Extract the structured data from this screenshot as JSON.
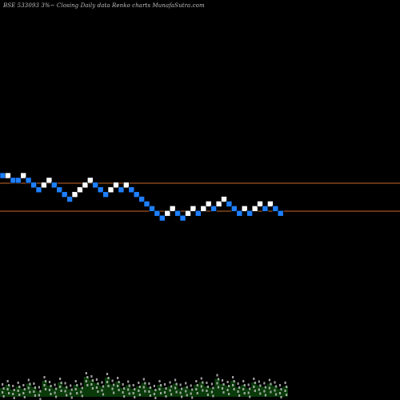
{
  "chart_data": {
    "type": "renko",
    "title": "BSE 533093 3%~   Closing Daily data  Renko  charts MunafaSutra.com",
    "colors": {
      "background": "#000000",
      "up_brick": "#ffffff",
      "down_brick": "#1e7fff",
      "level_line": "#c8682a",
      "volume_area": "#0a3a0a",
      "volume_label": "#d0d0d0"
    },
    "bricks": [
      {
        "dir": "down",
        "level": 10
      },
      {
        "dir": "up",
        "level": 10
      },
      {
        "dir": "down",
        "level": 9
      },
      {
        "dir": "down",
        "level": 9
      },
      {
        "dir": "up",
        "level": 10
      },
      {
        "dir": "down",
        "level": 9
      },
      {
        "dir": "down",
        "level": 8
      },
      {
        "dir": "down",
        "level": 7
      },
      {
        "dir": "up",
        "level": 8
      },
      {
        "dir": "up",
        "level": 9
      },
      {
        "dir": "down",
        "level": 8
      },
      {
        "dir": "down",
        "level": 7
      },
      {
        "dir": "down",
        "level": 6
      },
      {
        "dir": "down",
        "level": 5
      },
      {
        "dir": "up",
        "level": 6
      },
      {
        "dir": "up",
        "level": 7
      },
      {
        "dir": "up",
        "level": 8
      },
      {
        "dir": "up",
        "level": 9
      },
      {
        "dir": "down",
        "level": 8
      },
      {
        "dir": "down",
        "level": 7
      },
      {
        "dir": "down",
        "level": 6
      },
      {
        "dir": "up",
        "level": 7
      },
      {
        "dir": "up",
        "level": 8
      },
      {
        "dir": "down",
        "level": 7
      },
      {
        "dir": "up",
        "level": 8
      },
      {
        "dir": "down",
        "level": 7
      },
      {
        "dir": "down",
        "level": 6
      },
      {
        "dir": "down",
        "level": 5
      },
      {
        "dir": "down",
        "level": 4
      },
      {
        "dir": "down",
        "level": 3
      },
      {
        "dir": "down",
        "level": 2
      },
      {
        "dir": "down",
        "level": 1
      },
      {
        "dir": "up",
        "level": 2
      },
      {
        "dir": "up",
        "level": 3
      },
      {
        "dir": "down",
        "level": 2
      },
      {
        "dir": "down",
        "level": 1
      },
      {
        "dir": "up",
        "level": 2
      },
      {
        "dir": "up",
        "level": 3
      },
      {
        "dir": "down",
        "level": 2
      },
      {
        "dir": "up",
        "level": 3
      },
      {
        "dir": "up",
        "level": 4
      },
      {
        "dir": "down",
        "level": 3
      },
      {
        "dir": "up",
        "level": 4
      },
      {
        "dir": "up",
        "level": 5
      },
      {
        "dir": "down",
        "level": 4
      },
      {
        "dir": "down",
        "level": 3
      },
      {
        "dir": "down",
        "level": 2
      },
      {
        "dir": "up",
        "level": 3
      },
      {
        "dir": "down",
        "level": 2
      },
      {
        "dir": "up",
        "level": 3
      },
      {
        "dir": "up",
        "level": 4
      },
      {
        "dir": "down",
        "level": 3
      },
      {
        "dir": "up",
        "level": 4
      },
      {
        "dir": "down",
        "level": 3
      },
      {
        "dir": "down",
        "level": 2
      }
    ],
    "volume": [
      0.22,
      0.3,
      0.18,
      0.26,
      0.2,
      0.33,
      0.24,
      0.15,
      0.4,
      0.28,
      0.21,
      0.36,
      0.25,
      0.19,
      0.3,
      0.23,
      0.5,
      0.42,
      0.34,
      0.27,
      0.48,
      0.31,
      0.38,
      0.22,
      0.29,
      0.2,
      0.26,
      0.35,
      0.24,
      0.18,
      0.3,
      0.22,
      0.27,
      0.33,
      0.21,
      0.25,
      0.19,
      0.3,
      0.37,
      0.26,
      0.23,
      0.45,
      0.32,
      0.28,
      0.4,
      0.24,
      0.3,
      0.21,
      0.36,
      0.29,
      0.25,
      0.33,
      0.27,
      0.2,
      0.26
    ]
  }
}
